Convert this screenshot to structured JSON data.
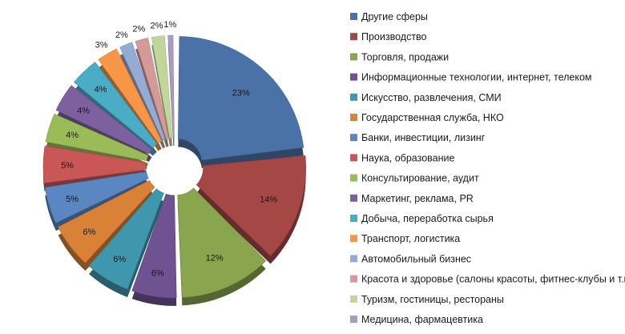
{
  "chart_data": {
    "type": "pie",
    "title": "",
    "legend_position": "right",
    "slices": [
      {
        "label": "Другие сферы",
        "value": 23,
        "value_label": "23%",
        "color": "#4a72a6"
      },
      {
        "label": "Производство",
        "value": 14,
        "value_label": "14%",
        "color": "#a54745"
      },
      {
        "label": "Торговля, продажи",
        "value": 12,
        "value_label": "12%",
        "color": "#89a54e"
      },
      {
        "label": "Информационные технологии, интернет, телеком",
        "value": 6,
        "value_label": "6%",
        "color": "#6e5291"
      },
      {
        "label": "Искусство, развлечения, СМИ",
        "value": 6,
        "value_label": "6%",
        "color": "#3f97ad"
      },
      {
        "label": "Государственная служба, НКО",
        "value": 6,
        "value_label": "6%",
        "color": "#d98137"
      },
      {
        "label": "Банки, инвестиции, лизинг",
        "value": 5,
        "value_label": "5%",
        "color": "#5a86c2"
      },
      {
        "label": "Наука, образование",
        "value": 5,
        "value_label": "5%",
        "color": "#c85755"
      },
      {
        "label": "Консультирование, аудит",
        "value": 4,
        "value_label": "4%",
        "color": "#9bbb59"
      },
      {
        "label": "Маркетинг, реклама, PR",
        "value": 4,
        "value_label": "4%",
        "color": "#7d60a0"
      },
      {
        "label": "Добыча, переработка сырья",
        "value": 4,
        "value_label": "4%",
        "color": "#4bacc6"
      },
      {
        "label": "Транспорт, логистика",
        "value": 3,
        "value_label": "3%",
        "color": "#f79646"
      },
      {
        "label": "Автомобильный бизнес",
        "value": 2,
        "value_label": "2%",
        "color": "#94acd4"
      },
      {
        "label": "Красота и здоровье (салоны красоты, фитнес-клубы и т.п.)",
        "value": 2,
        "value_label": "2%",
        "color": "#d49a99"
      },
      {
        "label": "Туризм, гостиницы, рестораны",
        "value": 2,
        "value_label": "2%",
        "color": "#c2d69b"
      },
      {
        "label": "Медицина, фармацевтика",
        "value": 1,
        "value_label": "1%",
        "color": "#a99bc2"
      }
    ]
  }
}
